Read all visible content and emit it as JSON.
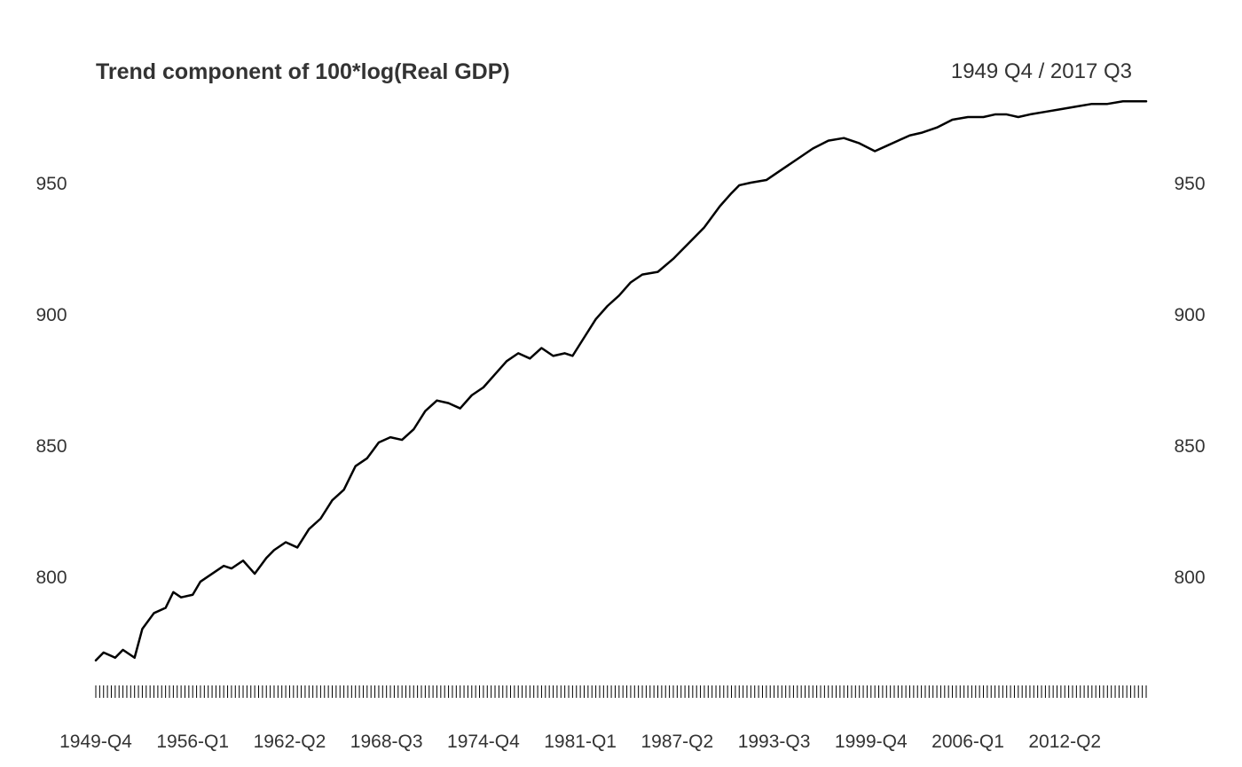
{
  "chart_data": {
    "type": "line",
    "title": "Trend component of 100*log(Real GDP)",
    "date_range": "1949 Q4 / 2017 Q3",
    "xlabel": "",
    "ylabel": "",
    "ylim": [
      760,
      980
    ],
    "y_ticks": [
      800,
      850,
      900,
      950
    ],
    "y_tick_labels": [
      "800",
      "850",
      "900",
      "950"
    ],
    "x_tick_labels": [
      "1949-Q4",
      "1956-Q1",
      "1962-Q2",
      "1968-Q3",
      "1974-Q4",
      "1981-Q1",
      "1987-Q2",
      "1993-Q3",
      "1999-Q4",
      "2006-Q1",
      "2012-Q2"
    ],
    "grid": false,
    "series": [
      {
        "color": "#000000",
        "x": [
          "1949-Q4",
          "1950-Q2",
          "1951-Q1",
          "1951-Q3",
          "1952-Q2",
          "1952-Q4",
          "1953-Q3",
          "1954-Q2",
          "1954-Q4",
          "1955-Q2",
          "1956-Q1",
          "1956-Q3",
          "1957-Q2",
          "1958-Q1",
          "1958-Q3",
          "1959-Q2",
          "1960-Q1",
          "1960-Q4",
          "1961-Q2",
          "1962-Q1",
          "1962-Q4",
          "1963-Q3",
          "1964-Q2",
          "1965-Q1",
          "1965-Q4",
          "1966-Q3",
          "1967-Q2",
          "1968-Q1",
          "1968-Q4",
          "1969-Q3",
          "1970-Q2",
          "1971-Q1",
          "1971-Q4",
          "1972-Q3",
          "1973-Q2",
          "1974-Q1",
          "1974-Q4",
          "1975-Q3",
          "1976-Q2",
          "1977-Q1",
          "1977-Q4",
          "1978-Q3",
          "1979-Q2",
          "1980-Q1",
          "1980-Q3",
          "1981-Q2",
          "1982-Q1",
          "1982-Q4",
          "1983-Q3",
          "1984-Q2",
          "1985-Q1",
          "1986-Q1",
          "1987-Q1",
          "1988-Q1",
          "1989-Q1",
          "1990-Q1",
          "1990-Q4",
          "1991-Q2",
          "1992-Q1",
          "1993-Q1",
          "1994-Q1",
          "1995-Q1",
          "1996-Q1",
          "1997-Q1",
          "1998-Q1",
          "1999-Q1",
          "2000-Q1",
          "2000-Q4",
          "2001-Q3",
          "2002-Q2",
          "2003-Q1",
          "2004-Q1",
          "2005-Q1",
          "2006-Q1",
          "2007-Q1",
          "2007-Q4",
          "2008-Q3",
          "2009-Q2",
          "2010-Q1",
          "2011-Q1",
          "2012-Q1",
          "2013-Q1",
          "2014-Q1",
          "2015-Q1",
          "2016-Q1",
          "2017-Q3"
        ],
        "y": [
          768,
          771,
          769,
          772,
          769,
          780,
          786,
          788,
          794,
          792,
          793,
          798,
          801,
          804,
          803,
          806,
          801,
          807,
          810,
          813,
          811,
          818,
          822,
          829,
          833,
          842,
          845,
          851,
          853,
          852,
          856,
          863,
          867,
          866,
          864,
          869,
          872,
          877,
          882,
          885,
          883,
          887,
          884,
          885,
          884,
          891,
          898,
          903,
          907,
          912,
          915,
          916,
          921,
          927,
          933,
          941,
          946,
          949,
          950,
          951,
          955,
          959,
          963,
          966,
          967,
          965,
          962,
          964,
          966,
          968,
          969,
          971,
          974,
          975,
          975,
          976,
          976,
          975,
          976,
          977,
          978,
          979,
          980,
          980,
          981,
          981
        ]
      }
    ]
  }
}
